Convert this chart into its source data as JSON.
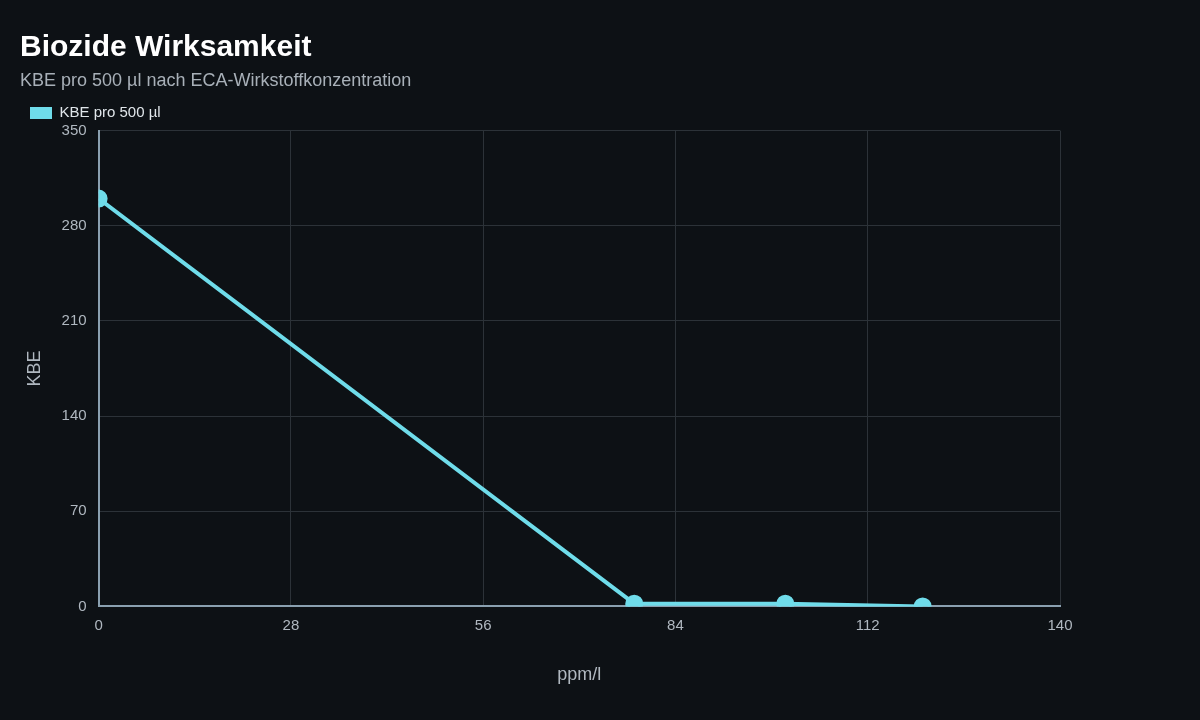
{
  "chart_data": {
    "type": "line",
    "title": "Biozide Wirksamkeit",
    "subtitle": "KBE pro 500 µl nach ECA-Wirkstoffkonzentration",
    "xlabel": "ppm/l",
    "ylabel": "KBE",
    "x": [
      0,
      78,
      100,
      120
    ],
    "series": [
      {
        "name": "KBE pro 500 µl",
        "color": "#6fdcea",
        "values": [
          300,
          2,
          2,
          0
        ]
      }
    ],
    "xlim": [
      0,
      140
    ],
    "xticks": [
      0,
      28,
      56,
      84,
      112,
      140
    ],
    "ylim": [
      0,
      350
    ],
    "yticks": [
      0,
      70,
      140,
      210,
      280,
      350
    ],
    "grid": true,
    "legend": "top left",
    "marker": "circle",
    "line_style": "solid"
  }
}
